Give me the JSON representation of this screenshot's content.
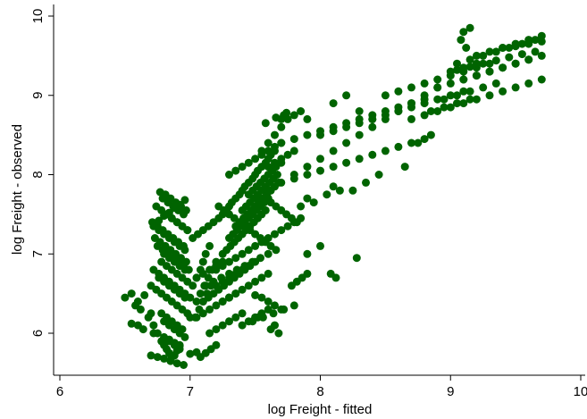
{
  "chart_data": {
    "type": "scatter",
    "xlabel": "log Freight - fitted",
    "ylabel": "log Freight - observed",
    "xlim": [
      6,
      10
    ],
    "ylim": [
      5.5,
      10.1
    ],
    "xticks": [
      "6",
      "7",
      "8",
      "9",
      "10"
    ],
    "yticks": [
      "6",
      "7",
      "8",
      "9",
      "10"
    ],
    "grid": false,
    "legend": "none",
    "marker_color": "#006400",
    "series": [
      {
        "x": [
          6.5,
          6.55,
          6.6,
          6.65,
          6.58,
          6.62,
          6.7,
          6.68,
          6.72,
          6.75,
          6.78,
          6.8,
          6.82,
          6.84,
          6.86,
          6.88,
          6.9,
          6.92,
          6.7,
          6.74,
          6.78,
          6.82,
          6.86,
          6.9,
          6.94,
          6.98,
          7.0,
          6.76,
          6.8,
          6.84,
          6.88,
          6.92,
          6.96,
          6.72,
          6.76,
          6.8,
          6.84,
          6.88,
          6.92,
          6.96,
          7.0,
          6.78,
          6.82,
          6.86,
          6.9,
          6.94,
          6.98,
          6.8,
          6.84,
          6.88,
          6.92,
          6.96,
          6.75,
          6.79,
          6.83,
          6.87,
          6.91,
          6.95,
          6.99,
          6.73,
          6.77,
          6.81,
          6.85,
          6.89,
          6.93,
          6.97,
          6.76,
          6.8,
          6.84,
          6.88,
          6.92,
          6.96,
          6.71,
          6.75,
          6.79,
          6.83,
          6.87,
          6.91,
          6.95,
          6.82,
          6.86,
          6.9,
          6.94,
          6.98,
          6.74,
          6.78,
          6.82,
          6.86,
          6.9,
          6.94,
          6.98,
          6.79,
          6.83,
          6.87,
          6.91,
          6.95,
          6.77,
          6.81,
          6.85,
          6.89,
          6.93,
          6.97,
          6.8,
          6.84,
          6.88,
          6.92,
          6.96,
          6.78,
          6.82,
          6.86,
          6.9,
          6.94,
          6.84,
          6.88,
          6.92,
          6.8,
          6.84,
          6.88,
          6.92,
          6.72,
          6.76,
          6.8,
          6.84,
          6.88,
          6.92,
          6.96,
          7.02,
          7.05,
          7.08,
          7.1,
          7.12,
          7.15,
          7.05,
          7.08,
          7.11,
          7.14,
          7.17,
          7.2,
          7.04,
          7.07,
          7.1,
          7.13,
          7.16,
          7.02,
          7.06,
          7.1,
          7.14,
          7.18,
          7.22,
          7.25,
          7.28,
          7.3,
          7.32,
          7.35,
          7.38,
          7.4,
          7.42,
          7.45,
          7.48,
          7.5,
          7.52,
          7.55,
          7.58,
          7.6,
          7.62,
          7.65,
          7.25,
          7.28,
          7.31,
          7.34,
          7.37,
          7.4,
          7.43,
          7.46,
          7.49,
          7.52,
          7.55,
          7.58,
          7.3,
          7.33,
          7.36,
          7.39,
          7.42,
          7.45,
          7.48,
          7.51,
          7.54,
          7.57,
          7.6,
          7.35,
          7.38,
          7.41,
          7.44,
          7.47,
          7.5,
          7.53,
          7.56,
          7.59,
          7.62,
          7.65,
          7.68,
          7.4,
          7.43,
          7.46,
          7.49,
          7.52,
          7.55,
          7.58,
          7.61,
          7.64,
          7.67,
          7.45,
          7.48,
          7.51,
          7.54,
          7.57,
          7.6,
          7.63,
          7.66,
          7.7,
          7.3,
          7.35,
          7.4,
          7.45,
          7.5,
          7.55,
          7.6,
          7.65,
          7.7,
          7.22,
          7.26,
          7.3,
          7.34,
          7.38,
          7.42,
          7.46,
          7.5,
          7.54,
          7.58,
          7.62,
          7.2,
          7.25,
          7.3,
          7.35,
          7.4,
          7.45,
          7.5,
          7.55,
          7.6,
          7.65,
          7.7,
          7.75,
          7.8,
          7.85,
          7.55,
          7.6,
          7.65,
          7.7,
          7.75,
          7.8,
          7.85,
          7.9,
          7.6,
          7.65,
          7.7,
          7.75,
          7.8,
          7.58,
          7.62,
          7.66,
          7.7,
          7.74,
          7.78,
          7.82,
          7.2,
          7.25,
          7.3,
          7.35,
          7.4,
          7.45,
          7.5,
          7.1,
          7.14,
          7.18,
          7.22,
          7.26,
          7.3,
          7.34,
          7.38,
          7.42,
          7.46,
          7.05,
          7.1,
          7.15,
          7.2,
          7.25,
          7.3,
          7.35,
          7.4,
          7.45,
          7.5,
          7.55,
          7.6,
          7.15,
          7.2,
          7.25,
          7.3,
          7.35,
          7.4,
          7.5,
          7.55,
          7.6,
          7.65,
          7.7,
          7.05,
          7.1,
          7.15,
          7.2,
          7.25,
          7.12,
          7.18,
          7.24,
          7.3,
          7.36,
          7.42,
          7.48,
          7.54,
          7.6,
          7.66,
          7.4,
          7.48,
          7.56,
          7.64,
          7.72,
          7.8,
          7.5,
          7.6,
          7.7,
          7.8,
          7.9,
          8.0,
          8.1,
          8.2,
          8.3,
          8.4,
          8.5,
          8.6,
          8.7,
          8.8,
          8.9,
          7.7,
          7.8,
          7.9,
          8.0,
          8.1,
          8.2,
          8.3,
          8.4,
          8.5,
          8.6,
          8.7,
          8.8,
          7.8,
          7.9,
          8.0,
          8.1,
          8.2,
          8.3,
          8.4,
          8.5,
          8.6,
          8.7,
          8.0,
          8.1,
          8.2,
          8.3,
          8.4,
          8.5,
          8.6,
          8.7,
          8.8,
          8.9,
          9.0,
          9.1,
          8.5,
          8.6,
          8.7,
          8.8,
          8.9,
          9.0,
          9.1,
          9.2,
          9.3,
          8.7,
          8.8,
          8.9,
          9.0,
          9.1,
          9.2,
          9.3,
          9.4,
          9.5,
          9.6,
          9.7,
          8.9,
          9.0,
          9.1,
          9.2,
          9.3,
          9.4,
          9.5,
          9.6,
          9.05,
          9.15,
          9.25,
          9.35,
          9.45,
          9.55,
          9.65,
          9.1,
          9.2,
          9.3,
          9.4,
          9.5,
          9.6,
          9.7,
          9.2,
          9.3,
          9.4,
          9.5,
          9.6,
          9.7,
          8.95,
          9.05,
          9.15,
          9.25,
          9.35,
          8.85,
          8.95,
          9.05,
          9.15,
          9.0,
          9.1,
          9.2,
          9.4,
          9.5,
          9.6,
          9.7,
          9.65,
          9.55,
          9.45,
          9.35,
          9.25,
          9.15,
          9.05,
          8.75,
          8.8,
          8.85,
          9.15,
          9.1,
          9.08,
          9.12,
          8.45,
          8.65,
          8.35,
          8.25,
          8.4,
          8.3,
          8.1,
          8.2,
          7.9,
          7.95,
          7.85,
          8.05,
          8.15,
          8.1,
          7.78,
          7.82,
          7.86,
          7.9,
          7.6,
          7.55,
          7.5,
          7.45,
          7.35,
          7.3,
          7.25,
          7.65,
          7.52,
          7.62,
          7.68,
          7.9,
          8.0,
          8.08,
          8.12,
          8.28,
          7.08,
          7.12,
          7.16,
          7.2,
          6.95,
          6.9,
          6.85,
          6.8,
          6.75,
          6.7,
          7.0,
          7.05,
          6.72,
          6.64,
          6.6,
          6.55,
          7.7,
          7.72,
          7.74,
          7.66,
          7.58
        ],
        "y": [
          6.45,
          6.5,
          6.4,
          6.48,
          6.35,
          6.3,
          6.25,
          6.2,
          6.1,
          6.0,
          5.9,
          5.85,
          5.8,
          5.75,
          5.7,
          5.72,
          5.78,
          5.85,
          6.6,
          6.55,
          6.5,
          6.45,
          6.4,
          6.35,
          6.3,
          6.25,
          6.2,
          6.7,
          6.65,
          6.6,
          6.55,
          6.5,
          6.45,
          6.8,
          6.75,
          6.7,
          6.65,
          6.6,
          6.55,
          6.5,
          6.45,
          6.9,
          6.85,
          6.8,
          6.75,
          6.7,
          6.65,
          7.0,
          6.95,
          6.9,
          6.85,
          6.8,
          7.1,
          7.05,
          7.0,
          6.95,
          6.9,
          6.85,
          6.8,
          7.2,
          7.15,
          7.1,
          7.05,
          7.0,
          6.95,
          6.9,
          7.3,
          7.25,
          7.2,
          7.15,
          7.1,
          7.05,
          7.4,
          7.35,
          7.3,
          7.25,
          7.2,
          7.15,
          7.1,
          7.5,
          7.45,
          7.4,
          7.35,
          7.3,
          7.6,
          7.55,
          7.5,
          7.45,
          7.4,
          7.35,
          7.3,
          7.7,
          7.65,
          7.6,
          7.55,
          7.5,
          7.78,
          7.75,
          7.7,
          7.65,
          7.6,
          7.55,
          6.15,
          6.1,
          6.05,
          6.0,
          5.95,
          6.25,
          6.2,
          6.15,
          6.1,
          6.05,
          5.9,
          5.85,
          5.8,
          5.95,
          5.92,
          5.88,
          5.84,
          7.35,
          7.42,
          7.48,
          7.52,
          7.58,
          7.62,
          7.68,
          6.6,
          6.7,
          6.8,
          6.9,
          7.0,
          7.1,
          6.4,
          6.5,
          6.6,
          6.7,
          6.8,
          6.9,
          6.2,
          6.3,
          6.4,
          6.5,
          6.6,
          7.2,
          7.25,
          7.3,
          7.35,
          7.4,
          7.45,
          7.5,
          7.55,
          7.6,
          7.65,
          7.7,
          7.75,
          7.8,
          7.85,
          7.9,
          7.95,
          8.0,
          8.05,
          8.1,
          8.15,
          8.2,
          8.25,
          8.3,
          7.0,
          7.05,
          7.1,
          7.15,
          7.2,
          7.25,
          7.3,
          7.35,
          7.4,
          7.45,
          7.5,
          7.55,
          7.2,
          7.25,
          7.3,
          7.35,
          7.4,
          7.45,
          7.5,
          7.55,
          7.6,
          7.65,
          7.7,
          7.35,
          7.4,
          7.45,
          7.5,
          7.55,
          7.6,
          7.65,
          7.7,
          7.75,
          7.8,
          7.85,
          7.9,
          7.55,
          7.6,
          7.65,
          7.7,
          7.75,
          7.8,
          7.85,
          7.9,
          7.95,
          8.0,
          7.75,
          7.8,
          7.85,
          7.9,
          7.95,
          8.0,
          8.05,
          8.1,
          8.15,
          8.0,
          8.05,
          8.1,
          8.15,
          8.2,
          8.25,
          8.3,
          8.35,
          8.4,
          7.6,
          7.55,
          7.5,
          7.45,
          7.4,
          7.35,
          7.3,
          7.25,
          7.2,
          7.15,
          7.1,
          6.8,
          6.85,
          6.9,
          6.95,
          7.0,
          7.05,
          7.1,
          7.15,
          7.2,
          7.25,
          7.3,
          7.35,
          7.4,
          7.45,
          8.3,
          8.4,
          8.5,
          8.6,
          8.7,
          8.75,
          8.8,
          8.7,
          8.1,
          8.15,
          8.2,
          8.25,
          8.3,
          7.7,
          7.65,
          7.6,
          7.55,
          7.5,
          7.45,
          7.4,
          6.6,
          6.65,
          6.7,
          6.75,
          6.8,
          6.85,
          6.9,
          6.4,
          6.45,
          6.5,
          6.55,
          6.6,
          6.65,
          6.7,
          6.75,
          6.8,
          6.85,
          6.2,
          6.25,
          6.3,
          6.35,
          6.4,
          6.45,
          6.5,
          6.55,
          6.6,
          6.65,
          6.7,
          6.75,
          6.0,
          6.05,
          6.1,
          6.15,
          6.2,
          6.25,
          6.48,
          6.45,
          6.4,
          6.35,
          6.3,
          6.7,
          6.75,
          6.8,
          6.85,
          6.9,
          6.6,
          6.65,
          6.7,
          6.75,
          6.8,
          6.85,
          6.9,
          6.95,
          7.0,
          7.05,
          6.1,
          6.15,
          6.2,
          6.25,
          6.3,
          6.35,
          7.7,
          7.8,
          7.9,
          8.0,
          8.1,
          8.2,
          8.3,
          8.4,
          8.5,
          8.6,
          8.7,
          8.8,
          8.9,
          9.0,
          9.1,
          8.4,
          8.45,
          8.5,
          8.55,
          8.6,
          8.65,
          8.7,
          8.75,
          8.8,
          8.85,
          8.9,
          8.95,
          7.95,
          8.0,
          8.05,
          8.1,
          8.15,
          8.2,
          8.25,
          8.3,
          8.35,
          8.4,
          8.5,
          8.55,
          8.6,
          8.65,
          8.7,
          8.75,
          8.8,
          8.85,
          8.9,
          8.95,
          9.0,
          9.05,
          9.0,
          9.05,
          9.1,
          9.15,
          9.2,
          9.25,
          9.3,
          9.35,
          9.4,
          8.7,
          8.75,
          8.8,
          8.85,
          8.9,
          8.95,
          9.0,
          9.05,
          9.1,
          9.15,
          9.2,
          9.1,
          9.15,
          9.2,
          9.25,
          9.3,
          9.35,
          9.4,
          9.45,
          9.4,
          9.45,
          9.5,
          9.55,
          9.6,
          9.65,
          9.7,
          9.2,
          9.25,
          9.3,
          9.35,
          9.4,
          9.45,
          9.5,
          9.5,
          9.55,
          9.6,
          9.65,
          9.7,
          9.75,
          8.95,
          9.0,
          9.05,
          9.1,
          9.15,
          8.8,
          8.85,
          8.9,
          8.95,
          9.3,
          9.35,
          9.4,
          9.6,
          9.62,
          9.65,
          9.68,
          9.55,
          9.52,
          9.48,
          9.44,
          9.4,
          9.36,
          9.32,
          8.4,
          8.45,
          8.5,
          9.85,
          9.8,
          9.7,
          9.6,
          8.0,
          8.1,
          7.9,
          7.8,
          8.7,
          8.8,
          8.9,
          9.0,
          7.7,
          7.65,
          7.6,
          7.75,
          7.8,
          7.85,
          6.6,
          6.65,
          6.7,
          6.75,
          6.3,
          6.25,
          6.2,
          6.15,
          6.5,
          6.45,
          6.4,
          6.1,
          6.2,
          6.05,
          6.0,
          7.0,
          7.1,
          6.75,
          6.7,
          6.95,
          5.7,
          5.75,
          5.8,
          5.85,
          5.6,
          5.62,
          5.65,
          5.68,
          5.7,
          5.72,
          5.74,
          5.76,
          6.0,
          6.05,
          6.1,
          6.12,
          8.7,
          8.75,
          8.78,
          8.72,
          8.65
        ]
      }
    ]
  }
}
